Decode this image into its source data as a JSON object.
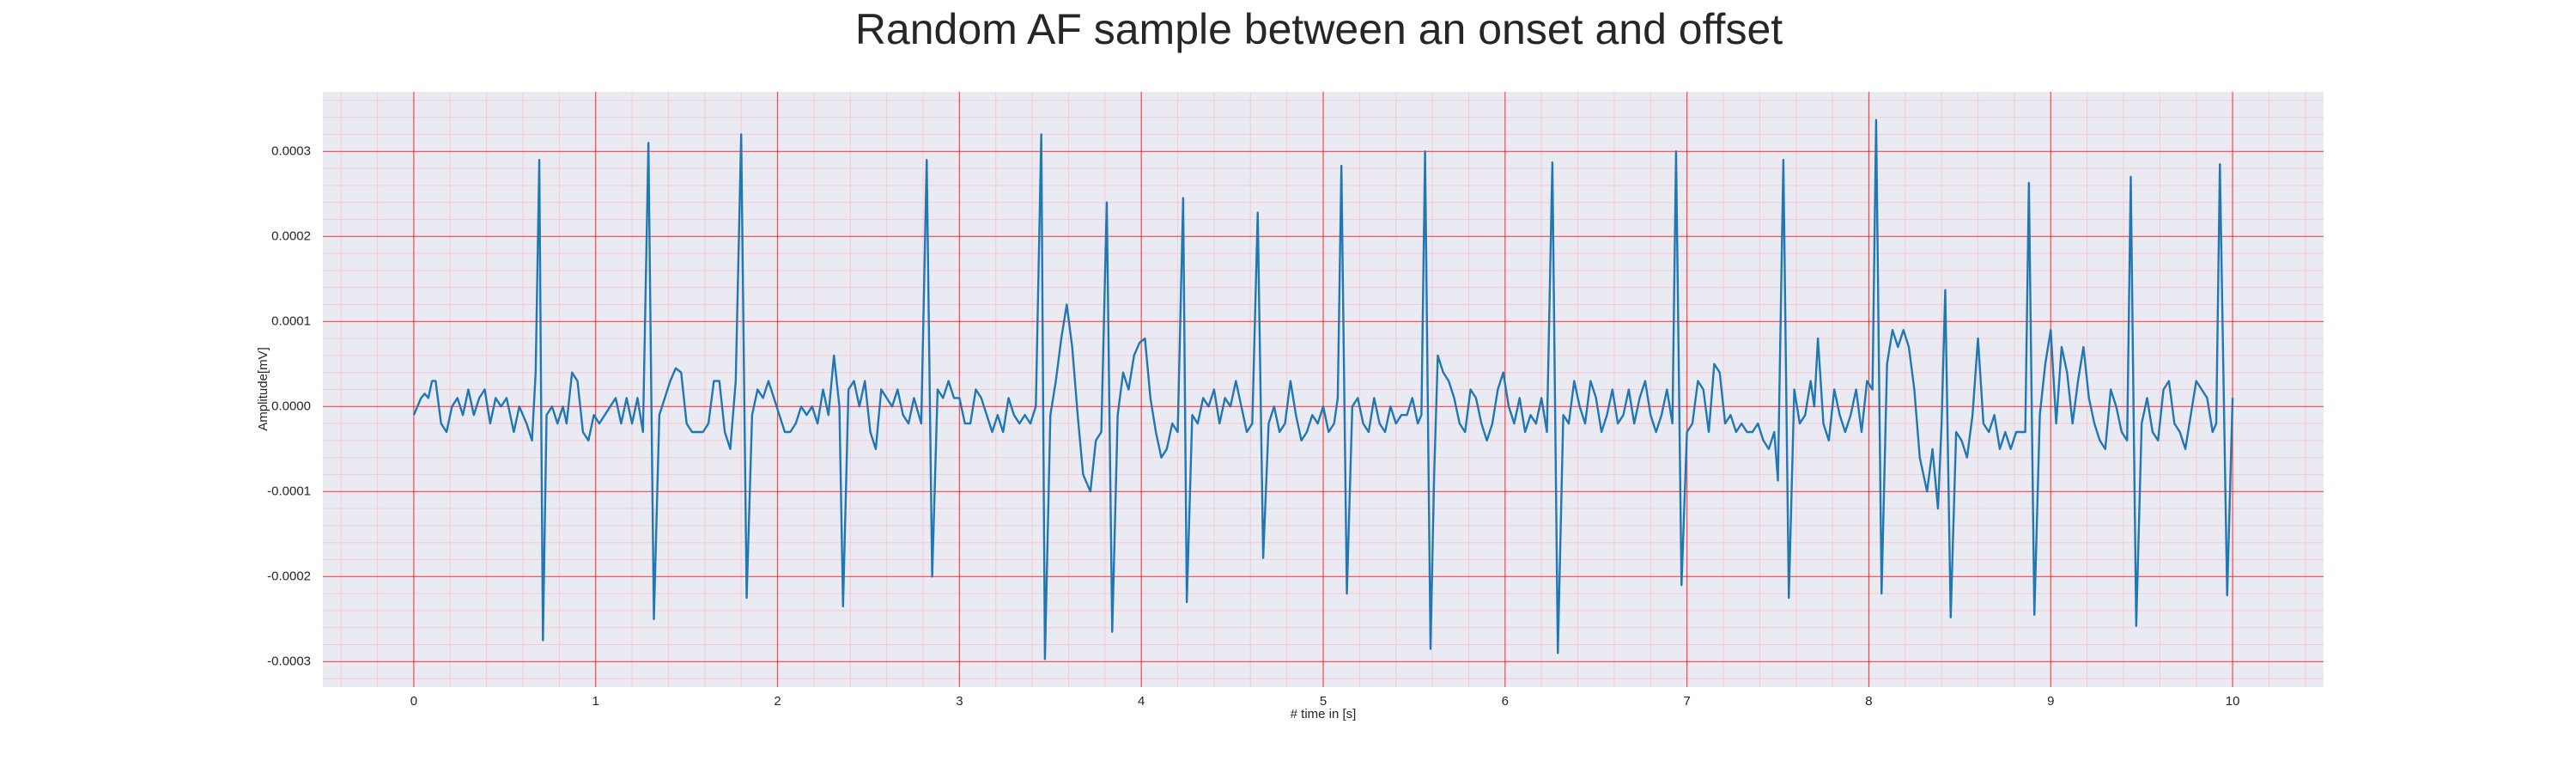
{
  "chart_data": {
    "type": "line",
    "title": "Random AF sample between an onset and offset",
    "xlabel": "# time in [s]",
    "ylabel": "Amplitude[mV]",
    "color": "#1f77b4",
    "background": "#eaeaf2",
    "grid": {
      "major_color": "#ff0000",
      "minor_color": "#ffb6c1",
      "minor_divisions": 5
    },
    "xlim": [
      -0.5,
      10.5
    ],
    "ylim": [
      -0.00033,
      0.00037
    ],
    "xticks": [
      0,
      1,
      2,
      3,
      4,
      5,
      6,
      7,
      8,
      9,
      10
    ],
    "yticks": [
      -0.0003,
      -0.0002,
      -0.0001,
      {
        "value": 0,
        "label": "0.0000"
      },
      0.0001,
      0.0002,
      0.0003
    ],
    "x": [
      0.0,
      0.04,
      0.06,
      0.08,
      0.1,
      0.12,
      0.15,
      0.18,
      0.21,
      0.24,
      0.27,
      0.3,
      0.33,
      0.36,
      0.39,
      0.42,
      0.45,
      0.48,
      0.51,
      0.55,
      0.58,
      0.62,
      0.65,
      0.67,
      0.69,
      0.71,
      0.73,
      0.76,
      0.79,
      0.82,
      0.84,
      0.87,
      0.9,
      0.93,
      0.96,
      0.99,
      1.02,
      1.05,
      1.08,
      1.11,
      1.14,
      1.17,
      1.2,
      1.23,
      1.26,
      1.29,
      1.32,
      1.35,
      1.38,
      1.41,
      1.44,
      1.47,
      1.5,
      1.53,
      1.56,
      1.59,
      1.62,
      1.65,
      1.68,
      1.71,
      1.74,
      1.77,
      1.8,
      1.83,
      1.86,
      1.89,
      1.92,
      1.95,
      1.98,
      2.01,
      2.04,
      2.07,
      2.1,
      2.13,
      2.16,
      2.19,
      2.22,
      2.25,
      2.28,
      2.31,
      2.34,
      2.36,
      2.39,
      2.42,
      2.45,
      2.48,
      2.51,
      2.54,
      2.57,
      2.6,
      2.63,
      2.66,
      2.69,
      2.72,
      2.75,
      2.79,
      2.82,
      2.85,
      2.88,
      2.91,
      2.94,
      2.97,
      3.0,
      3.03,
      3.06,
      3.09,
      3.12,
      3.15,
      3.18,
      3.21,
      3.24,
      3.27,
      3.3,
      3.33,
      3.36,
      3.39,
      3.42,
      3.45,
      3.47,
      3.5,
      3.53,
      3.56,
      3.59,
      3.62,
      3.65,
      3.68,
      3.72,
      3.75,
      3.78,
      3.81,
      3.84,
      3.87,
      3.9,
      3.93,
      3.96,
      3.99,
      4.02,
      4.05,
      4.08,
      4.11,
      4.14,
      4.17,
      4.2,
      4.23,
      4.25,
      4.28,
      4.31,
      4.34,
      4.37,
      4.4,
      4.43,
      4.46,
      4.49,
      4.52,
      4.55,
      4.58,
      4.61,
      4.64,
      4.67,
      4.7,
      4.73,
      4.76,
      4.79,
      4.82,
      4.85,
      4.88,
      4.91,
      4.94,
      4.97,
      5.0,
      5.03,
      5.06,
      5.08,
      5.1,
      5.13,
      5.16,
      5.19,
      5.22,
      5.25,
      5.28,
      5.31,
      5.34,
      5.37,
      5.4,
      5.43,
      5.46,
      5.49,
      5.52,
      5.54,
      5.56,
      5.59,
      5.61,
      5.63,
      5.66,
      5.69,
      5.72,
      5.75,
      5.78,
      5.81,
      5.84,
      5.87,
      5.9,
      5.93,
      5.96,
      5.99,
      6.02,
      6.05,
      6.08,
      6.11,
      6.14,
      6.17,
      6.2,
      6.23,
      6.26,
      6.29,
      6.32,
      6.35,
      6.38,
      6.41,
      6.44,
      6.47,
      6.5,
      6.53,
      6.56,
      6.59,
      6.62,
      6.65,
      6.68,
      6.71,
      6.74,
      6.77,
      6.8,
      6.83,
      6.86,
      6.89,
      6.92,
      6.94,
      6.97,
      7.0,
      7.03,
      7.06,
      7.09,
      7.12,
      7.15,
      7.18,
      7.21,
      7.24,
      7.27,
      7.3,
      7.33,
      7.36,
      7.39,
      7.42,
      7.45,
      7.48,
      7.5,
      7.53,
      7.56,
      7.59,
      7.62,
      7.65,
      7.68,
      7.7,
      7.72,
      7.75,
      7.78,
      7.81,
      7.84,
      7.87,
      7.9,
      7.93,
      7.96,
      7.99,
      8.02,
      8.04,
      8.07,
      8.1,
      8.13,
      8.16,
      8.19,
      8.22,
      8.25,
      8.28,
      8.32,
      8.35,
      8.38,
      8.4,
      8.42,
      8.45,
      8.48,
      8.51,
      8.54,
      8.57,
      8.6,
      8.63,
      8.66,
      8.69,
      8.72,
      8.75,
      8.78,
      8.81,
      8.84,
      8.86,
      8.88,
      8.91,
      8.94,
      8.97,
      9.0,
      9.03,
      9.06,
      9.09,
      9.12,
      9.15,
      9.18,
      9.21,
      9.24,
      9.27,
      9.3,
      9.33,
      9.36,
      9.39,
      9.42,
      9.44,
      9.47,
      9.5,
      9.53,
      9.56,
      9.59,
      9.62,
      9.65,
      9.68,
      9.71,
      9.74,
      9.77,
      9.8,
      9.83,
      9.86,
      9.89,
      9.91,
      9.93,
      9.97,
      10.0
    ],
    "values": [
      -1e-05,
      1e-05,
      1.5e-05,
      1e-05,
      3e-05,
      3e-05,
      -2e-05,
      -3e-05,
      0,
      1e-05,
      -1e-05,
      2e-05,
      -1e-05,
      1e-05,
      2e-05,
      -2e-05,
      1e-05,
      0,
      1e-05,
      -3e-05,
      0,
      -2e-05,
      -4e-05,
      4e-05,
      0.00029,
      -0.000275,
      -1e-05,
      0,
      -2e-05,
      0,
      -2e-05,
      4e-05,
      3e-05,
      -3e-05,
      -4e-05,
      -1e-05,
      -2e-05,
      -1e-05,
      0,
      1e-05,
      -2e-05,
      1e-05,
      -2e-05,
      1e-05,
      -3e-05,
      0.00031,
      -0.00025,
      -1e-05,
      1e-05,
      3e-05,
      4.5e-05,
      4e-05,
      -2e-05,
      -3e-05,
      -3e-05,
      -3e-05,
      -2e-05,
      3e-05,
      3e-05,
      -3e-05,
      -5e-05,
      3e-05,
      0.00032,
      -0.000225,
      -1e-05,
      2e-05,
      1e-05,
      3e-05,
      1e-05,
      -1e-05,
      -3e-05,
      -3e-05,
      -2e-05,
      0,
      -1e-05,
      0,
      -2e-05,
      2e-05,
      -1e-05,
      6e-05,
      0,
      -0.000235,
      2e-05,
      3e-05,
      0,
      3e-05,
      -3e-05,
      -5e-05,
      2e-05,
      1e-05,
      0,
      2e-05,
      -1e-05,
      -2e-05,
      1e-05,
      -2e-05,
      0.00029,
      -0.0002,
      2e-05,
      1e-05,
      3e-05,
      1e-05,
      1e-05,
      -2e-05,
      -2e-05,
      2e-05,
      1e-05,
      -1e-05,
      -3e-05,
      -1e-05,
      -3e-05,
      1e-05,
      -1e-05,
      -2e-05,
      -1e-05,
      -2e-05,
      0,
      0.00032,
      -0.000297,
      -1e-05,
      3e-05,
      8e-05,
      0.00012,
      7e-05,
      -1e-05,
      -8e-05,
      -0.0001,
      -4e-05,
      -3e-05,
      0.00024,
      -0.000265,
      -1e-05,
      4e-05,
      2e-05,
      6e-05,
      7.5e-05,
      8e-05,
      1e-05,
      -3e-05,
      -6e-05,
      -5e-05,
      -2e-05,
      -3e-05,
      0.000245,
      -0.00023,
      -1e-05,
      -2e-05,
      1e-05,
      0,
      2e-05,
      -2e-05,
      1e-05,
      0,
      3e-05,
      0,
      -3e-05,
      -2e-05,
      0.000228,
      -0.000178,
      -2e-05,
      0,
      -3e-05,
      -2e-05,
      3e-05,
      -1e-05,
      -4e-05,
      -3e-05,
      -1e-05,
      -2e-05,
      0,
      -3e-05,
      -2e-05,
      1e-05,
      0.000283,
      -0.00022,
      0,
      1e-05,
      -2e-05,
      -3e-05,
      1e-05,
      -2e-05,
      -3e-05,
      0,
      -2e-05,
      -1e-05,
      -1e-05,
      1e-05,
      -2e-05,
      -1e-05,
      0.0003,
      -0.000285,
      -8e-05,
      6e-05,
      4e-05,
      3e-05,
      1e-05,
      -2e-05,
      -3e-05,
      2e-05,
      1e-05,
      -2e-05,
      -4e-05,
      -2e-05,
      2e-05,
      4e-05,
      0,
      -2e-05,
      1e-05,
      -3e-05,
      -1e-05,
      -2e-05,
      1e-05,
      -3e-05,
      0.000287,
      -0.00029,
      -1e-05,
      -2e-05,
      3e-05,
      0,
      -2e-05,
      3e-05,
      1e-05,
      -3e-05,
      -1e-05,
      2e-05,
      -2e-05,
      -1e-05,
      2e-05,
      -2e-05,
      1e-05,
      3e-05,
      -1e-05,
      -3e-05,
      -1e-05,
      2e-05,
      -2e-05,
      0.0003,
      -0.00021,
      -3e-05,
      -2e-05,
      3e-05,
      2e-05,
      -3e-05,
      5e-05,
      4e-05,
      -2e-05,
      -1e-05,
      -3e-05,
      -2e-05,
      -3e-05,
      -3e-05,
      -2e-05,
      -4e-05,
      -5e-05,
      -3e-05,
      -8.7e-05,
      0.00029,
      -0.000225,
      2e-05,
      -2e-05,
      -1e-05,
      3e-05,
      0,
      8e-05,
      -2e-05,
      -4e-05,
      2e-05,
      -1e-05,
      -3e-05,
      -1e-05,
      2e-05,
      -3e-05,
      3e-05,
      2e-05,
      0.000337,
      -0.00022,
      5e-05,
      9e-05,
      7e-05,
      9e-05,
      7e-05,
      2e-05,
      -6e-05,
      -0.0001,
      -5e-05,
      -0.00012,
      -2e-05,
      0.000137,
      -0.000248,
      -3e-05,
      -4e-05,
      -6e-05,
      -1e-05,
      8e-05,
      -2e-05,
      -3e-05,
      -1e-05,
      -5e-05,
      -3e-05,
      -5e-05,
      -3e-05,
      -3e-05,
      -3e-05,
      0.000263,
      -0.000245,
      -1e-05,
      5e-05,
      9e-05,
      -2e-05,
      7e-05,
      4e-05,
      -2e-05,
      3e-05,
      7e-05,
      1e-05,
      -2e-05,
      -4e-05,
      -5e-05,
      2e-05,
      0,
      -3e-05,
      -4e-05,
      0.00027,
      -0.000258,
      -2e-05,
      1e-05,
      -3e-05,
      -4e-05,
      2e-05,
      3e-05,
      -2e-05,
      -3e-05,
      -5e-05,
      -1e-05,
      3e-05,
      2e-05,
      1e-05,
      -3e-05,
      -2e-05,
      0.000285,
      -0.000222,
      1e-05
    ]
  }
}
